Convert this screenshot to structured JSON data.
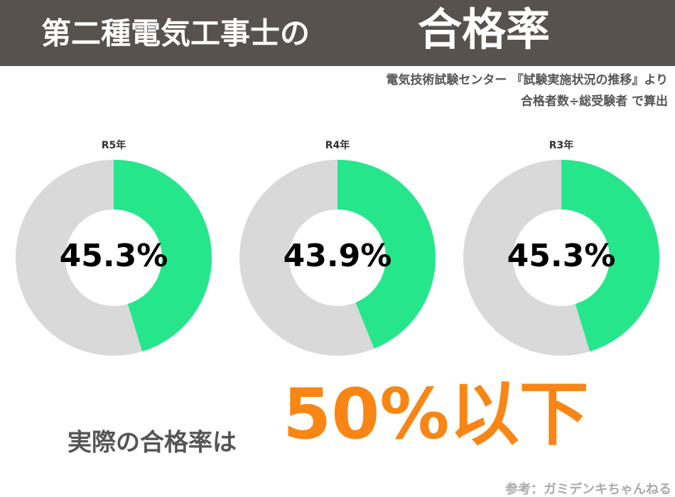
{
  "header": {
    "title": "第二種電気工事士の",
    "highlight": "合格率"
  },
  "source": [
    "電気技術試験センター 『試験実施状況の推移』より",
    "合格者数÷総受験者 で算出"
  ],
  "chart_data": [
    {
      "type": "pie",
      "title": "R5年",
      "values": [
        45.3
      ],
      "value_labels": [
        "45.3%"
      ],
      "colors": [
        "#26e68c"
      ],
      "track_color": "#d9d9d9"
    },
    {
      "type": "pie",
      "title": "R4年",
      "values": [
        43.9
      ],
      "value_labels": [
        "43.9%"
      ],
      "colors": [
        "#26e68c"
      ],
      "track_color": "#d9d9d9"
    },
    {
      "type": "pie",
      "title": "R3年",
      "values": [
        45.3
      ],
      "value_labels": [
        "45.3%"
      ],
      "colors": [
        "#26e68c"
      ],
      "track_color": "#d9d9d9"
    }
  ],
  "footer": {
    "lead": "実際の合格率は",
    "emphasis": "50%以下",
    "credit": "参考：ガミデンキちゃんねる"
  }
}
